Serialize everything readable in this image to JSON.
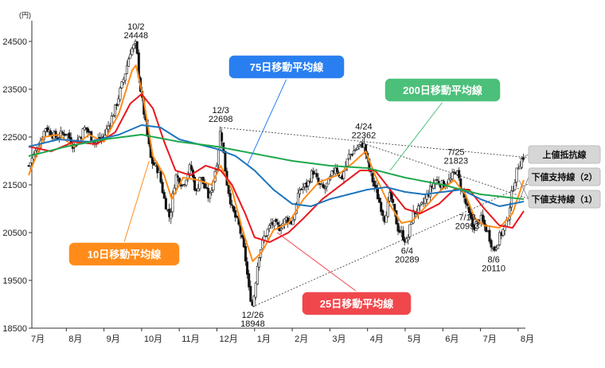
{
  "chart_data": {
    "type": "line",
    "ylabel": "(円)",
    "ylim": [
      18500,
      24700
    ],
    "yticks": [
      18500,
      19500,
      20500,
      21500,
      22500,
      23500,
      24500
    ],
    "month_labels": [
      "7月",
      "8月",
      "9月",
      "10月",
      "11月",
      "12月",
      "1月",
      "2月",
      "3月",
      "4月",
      "5月",
      "6月",
      "7月",
      "8月"
    ],
    "price_anchors": [
      {
        "x": 0,
        "y": 21900
      },
      {
        "x": 0.25,
        "y": 22300
      },
      {
        "x": 0.45,
        "y": 22700
      },
      {
        "x": 0.7,
        "y": 22500
      },
      {
        "x": 1.0,
        "y": 22600
      },
      {
        "x": 1.2,
        "y": 22300
      },
      {
        "x": 1.5,
        "y": 22700
      },
      {
        "x": 1.75,
        "y": 22400
      },
      {
        "x": 2.0,
        "y": 22500
      },
      {
        "x": 2.3,
        "y": 23100
      },
      {
        "x": 2.55,
        "y": 23800
      },
      {
        "x": 2.7,
        "y": 24300
      },
      {
        "x": 2.85,
        "y": 24448
      },
      {
        "x": 2.95,
        "y": 23600
      },
      {
        "x": 3.1,
        "y": 22800
      },
      {
        "x": 3.25,
        "y": 22000
      },
      {
        "x": 3.45,
        "y": 21800
      },
      {
        "x": 3.6,
        "y": 21200
      },
      {
        "x": 3.75,
        "y": 20800
      },
      {
        "x": 3.9,
        "y": 21700
      },
      {
        "x": 4.1,
        "y": 21500
      },
      {
        "x": 4.3,
        "y": 21900
      },
      {
        "x": 4.45,
        "y": 21300
      },
      {
        "x": 4.55,
        "y": 21700
      },
      {
        "x": 4.8,
        "y": 21200
      },
      {
        "x": 5.0,
        "y": 22000
      },
      {
        "x": 5.1,
        "y": 22698
      },
      {
        "x": 5.25,
        "y": 21600
      },
      {
        "x": 5.4,
        "y": 21000
      },
      {
        "x": 5.6,
        "y": 20600
      },
      {
        "x": 5.75,
        "y": 20000
      },
      {
        "x": 5.85,
        "y": 19300
      },
      {
        "x": 5.95,
        "y": 18948
      },
      {
        "x": 6.1,
        "y": 20000
      },
      {
        "x": 6.25,
        "y": 20400
      },
      {
        "x": 6.45,
        "y": 20700
      },
      {
        "x": 6.65,
        "y": 20600
      },
      {
        "x": 6.85,
        "y": 20800
      },
      {
        "x": 7.0,
        "y": 20700
      },
      {
        "x": 7.2,
        "y": 21400
      },
      {
        "x": 7.4,
        "y": 21500
      },
      {
        "x": 7.55,
        "y": 21800
      },
      {
        "x": 7.7,
        "y": 21500
      },
      {
        "x": 7.85,
        "y": 21400
      },
      {
        "x": 8.0,
        "y": 21600
      },
      {
        "x": 8.15,
        "y": 21900
      },
      {
        "x": 8.3,
        "y": 21600
      },
      {
        "x": 8.5,
        "y": 22100
      },
      {
        "x": 8.75,
        "y": 22300
      },
      {
        "x": 8.9,
        "y": 22362
      },
      {
        "x": 9.05,
        "y": 21800
      },
      {
        "x": 9.25,
        "y": 21300
      },
      {
        "x": 9.45,
        "y": 20800
      },
      {
        "x": 9.6,
        "y": 21300
      },
      {
        "x": 9.8,
        "y": 20600
      },
      {
        "x": 10.05,
        "y": 20289
      },
      {
        "x": 10.2,
        "y": 20900
      },
      {
        "x": 10.4,
        "y": 21000
      },
      {
        "x": 10.6,
        "y": 21300
      },
      {
        "x": 10.8,
        "y": 21600
      },
      {
        "x": 11.0,
        "y": 21500
      },
      {
        "x": 11.2,
        "y": 21600
      },
      {
        "x": 11.35,
        "y": 21823
      },
      {
        "x": 11.5,
        "y": 21400
      },
      {
        "x": 11.65,
        "y": 20993
      },
      {
        "x": 11.8,
        "y": 20600
      },
      {
        "x": 12.0,
        "y": 20800
      },
      {
        "x": 12.2,
        "y": 20500
      },
      {
        "x": 12.35,
        "y": 20110
      },
      {
        "x": 12.5,
        "y": 20400
      },
      {
        "x": 12.7,
        "y": 20700
      },
      {
        "x": 12.85,
        "y": 21400
      },
      {
        "x": 13.0,
        "y": 21900
      },
      {
        "x": 13.15,
        "y": 22100
      }
    ],
    "series": [
      {
        "name": "10日移動平均線",
        "color": "#ff8c1a",
        "anchors": [
          {
            "x": 0,
            "y": 21700
          },
          {
            "x": 0.4,
            "y": 22500
          },
          {
            "x": 0.8,
            "y": 22550
          },
          {
            "x": 1.2,
            "y": 22300
          },
          {
            "x": 1.6,
            "y": 22550
          },
          {
            "x": 2.0,
            "y": 22400
          },
          {
            "x": 2.4,
            "y": 23000
          },
          {
            "x": 2.75,
            "y": 23900
          },
          {
            "x": 2.85,
            "y": 24000
          },
          {
            "x": 3.05,
            "y": 23300
          },
          {
            "x": 3.3,
            "y": 22100
          },
          {
            "x": 3.6,
            "y": 21700
          },
          {
            "x": 3.8,
            "y": 21200
          },
          {
            "x": 4.1,
            "y": 21650
          },
          {
            "x": 4.5,
            "y": 21600
          },
          {
            "x": 4.85,
            "y": 21500
          },
          {
            "x": 5.1,
            "y": 21900
          },
          {
            "x": 5.4,
            "y": 21400
          },
          {
            "x": 5.7,
            "y": 20500
          },
          {
            "x": 5.95,
            "y": 19900
          },
          {
            "x": 6.2,
            "y": 20100
          },
          {
            "x": 6.5,
            "y": 20550
          },
          {
            "x": 6.9,
            "y": 20700
          },
          {
            "x": 7.3,
            "y": 21200
          },
          {
            "x": 7.7,
            "y": 21550
          },
          {
            "x": 8.2,
            "y": 21700
          },
          {
            "x": 8.6,
            "y": 21950
          },
          {
            "x": 8.95,
            "y": 22200
          },
          {
            "x": 9.2,
            "y": 21700
          },
          {
            "x": 9.5,
            "y": 21200
          },
          {
            "x": 9.9,
            "y": 20700
          },
          {
            "x": 10.2,
            "y": 20750
          },
          {
            "x": 10.55,
            "y": 21050
          },
          {
            "x": 10.9,
            "y": 21350
          },
          {
            "x": 11.3,
            "y": 21600
          },
          {
            "x": 11.6,
            "y": 21300
          },
          {
            "x": 11.85,
            "y": 20800
          },
          {
            "x": 12.1,
            "y": 20650
          },
          {
            "x": 12.5,
            "y": 20600
          },
          {
            "x": 12.85,
            "y": 20900
          },
          {
            "x": 13.15,
            "y": 21600
          }
        ]
      },
      {
        "name": "25日移動平均線",
        "color": "#e8191e",
        "anchors": [
          {
            "x": 0,
            "y": 22300
          },
          {
            "x": 0.6,
            "y": 22200
          },
          {
            "x": 1.2,
            "y": 22400
          },
          {
            "x": 1.8,
            "y": 22350
          },
          {
            "x": 2.3,
            "y": 22600
          },
          {
            "x": 2.7,
            "y": 23200
          },
          {
            "x": 3.0,
            "y": 23400
          },
          {
            "x": 3.3,
            "y": 23100
          },
          {
            "x": 3.6,
            "y": 22400
          },
          {
            "x": 3.9,
            "y": 21800
          },
          {
            "x": 4.3,
            "y": 21700
          },
          {
            "x": 4.7,
            "y": 21900
          },
          {
            "x": 5.1,
            "y": 21800
          },
          {
            "x": 5.4,
            "y": 21500
          },
          {
            "x": 5.75,
            "y": 20900
          },
          {
            "x": 6.0,
            "y": 20400
          },
          {
            "x": 6.4,
            "y": 20300
          },
          {
            "x": 6.9,
            "y": 20500
          },
          {
            "x": 7.3,
            "y": 20800
          },
          {
            "x": 7.8,
            "y": 21200
          },
          {
            "x": 8.3,
            "y": 21500
          },
          {
            "x": 8.8,
            "y": 21800
          },
          {
            "x": 9.2,
            "y": 21800
          },
          {
            "x": 9.6,
            "y": 21400
          },
          {
            "x": 10.0,
            "y": 21000
          },
          {
            "x": 10.4,
            "y": 20900
          },
          {
            "x": 10.9,
            "y": 21100
          },
          {
            "x": 11.3,
            "y": 21400
          },
          {
            "x": 11.7,
            "y": 21400
          },
          {
            "x": 12.1,
            "y": 21000
          },
          {
            "x": 12.5,
            "y": 20650
          },
          {
            "x": 12.85,
            "y": 20600
          },
          {
            "x": 13.15,
            "y": 20950
          }
        ]
      },
      {
        "name": "75日移動平均線",
        "color": "#1c75bc",
        "anchors": [
          {
            "x": 0,
            "y": 22300
          },
          {
            "x": 0.8,
            "y": 22450
          },
          {
            "x": 1.6,
            "y": 22400
          },
          {
            "x": 2.4,
            "y": 22550
          },
          {
            "x": 3.0,
            "y": 22750
          },
          {
            "x": 3.5,
            "y": 22700
          },
          {
            "x": 4.0,
            "y": 22450
          },
          {
            "x": 4.5,
            "y": 22350
          },
          {
            "x": 5.0,
            "y": 22250
          },
          {
            "x": 5.5,
            "y": 22100
          },
          {
            "x": 6.0,
            "y": 21800
          },
          {
            "x": 6.5,
            "y": 21400
          },
          {
            "x": 7.0,
            "y": 21100
          },
          {
            "x": 7.5,
            "y": 21050
          },
          {
            "x": 8.0,
            "y": 21200
          },
          {
            "x": 8.5,
            "y": 21300
          },
          {
            "x": 9.0,
            "y": 21400
          },
          {
            "x": 9.5,
            "y": 21450
          },
          {
            "x": 10.0,
            "y": 21350
          },
          {
            "x": 10.5,
            "y": 21300
          },
          {
            "x": 11.0,
            "y": 21350
          },
          {
            "x": 11.5,
            "y": 21400
          },
          {
            "x": 12.0,
            "y": 21200
          },
          {
            "x": 12.5,
            "y": 21050
          },
          {
            "x": 13.15,
            "y": 21150
          }
        ]
      },
      {
        "name": "200日移動平均線",
        "color": "#1ea84b",
        "anchors": [
          {
            "x": 0,
            "y": 22100
          },
          {
            "x": 1.0,
            "y": 22300
          },
          {
            "x": 2.0,
            "y": 22450
          },
          {
            "x": 3.0,
            "y": 22550
          },
          {
            "x": 4.0,
            "y": 22400
          },
          {
            "x": 5.0,
            "y": 22300
          },
          {
            "x": 6.0,
            "y": 22150
          },
          {
            "x": 7.0,
            "y": 22000
          },
          {
            "x": 8.0,
            "y": 21900
          },
          {
            "x": 9.0,
            "y": 21850
          },
          {
            "x": 10.0,
            "y": 21650
          },
          {
            "x": 11.0,
            "y": 21500
          },
          {
            "x": 12.0,
            "y": 21300
          },
          {
            "x": 13.15,
            "y": 21200
          }
        ]
      }
    ],
    "trendlines": [
      {
        "name": "上値抵抗線",
        "from": {
          "x": 5.1,
          "y": 22698
        },
        "to": {
          "x": 13.5,
          "y": 22050
        }
      },
      {
        "name": "下値支持線（2）",
        "from": {
          "x": 8.9,
          "y": 22362
        },
        "to": {
          "x": 13.5,
          "y": 21150
        }
      },
      {
        "name": "下値支持線（1）",
        "from": {
          "x": 5.95,
          "y": 18948
        },
        "to": {
          "x": 13.5,
          "y": 21600
        }
      }
    ],
    "annotations": [
      {
        "date": "10/2",
        "value": "24448",
        "x": 2.85,
        "y": 24448,
        "pos": "above"
      },
      {
        "date": "12/3",
        "value": "22698",
        "x": 5.1,
        "y": 22698,
        "pos": "above"
      },
      {
        "date": "12/26",
        "value": "18948",
        "x": 5.95,
        "y": 18948,
        "pos": "below"
      },
      {
        "date": "4/24",
        "value": "22362",
        "x": 8.9,
        "y": 22362,
        "pos": "above"
      },
      {
        "date": "6/4",
        "value": "20289",
        "x": 10.05,
        "y": 20289,
        "pos": "below"
      },
      {
        "date": "7/25",
        "value": "21823",
        "x": 11.35,
        "y": 21823,
        "pos": "above"
      },
      {
        "date": "7/18",
        "value": "20993",
        "x": 11.65,
        "y": 20993,
        "pos": "below"
      },
      {
        "date": "8/6",
        "value": "20110",
        "x": 12.35,
        "y": 20110,
        "pos": "below"
      }
    ],
    "callouts": [
      {
        "label": "75日移動平均線",
        "color": "#2a7ff0",
        "text_color": "#ffffff",
        "target": {
          "x": 5.8,
          "y": 21900
        }
      },
      {
        "label": "200日移動平均線",
        "color": "#4cc07a",
        "text_color": "#ffffff",
        "target": {
          "x": 9.6,
          "y": 21800
        }
      },
      {
        "label": "10日移動平均線",
        "color": "#ff8c1a",
        "text_color": "#ffffff",
        "target": {
          "x": 3.2,
          "y": 22000
        }
      },
      {
        "label": "25日移動平均線",
        "color": "#f0474c",
        "text_color": "#ffffff",
        "target": {
          "x": 6.6,
          "y": 20500
        }
      }
    ],
    "side_labels": [
      "上値抵抗線",
      "下値支持線（2）",
      "下値支持線（1）"
    ]
  }
}
